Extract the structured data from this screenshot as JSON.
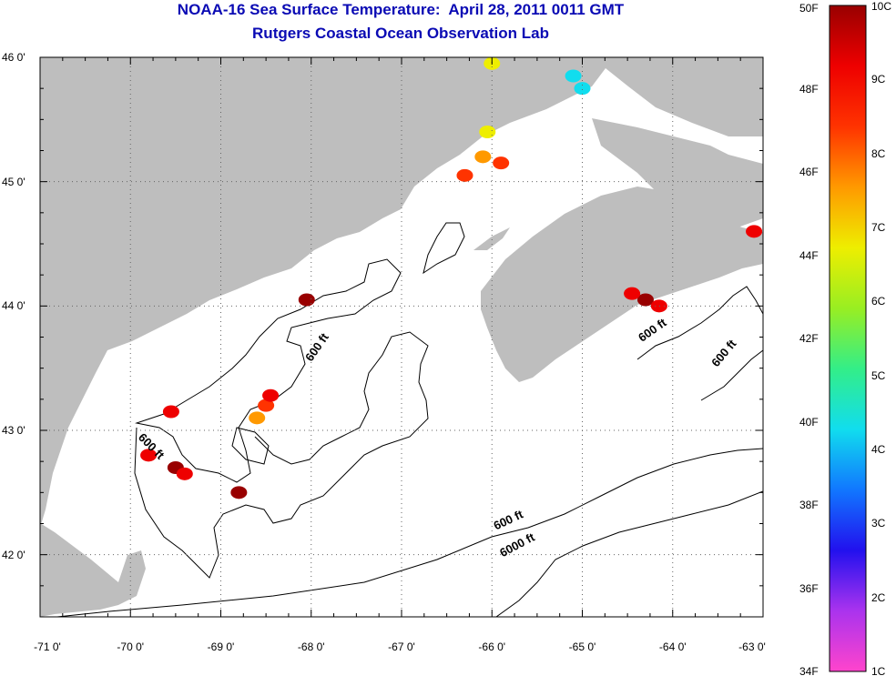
{
  "title": {
    "line1": "NOAA-16 Sea Surface Temperature:  April 28, 2011 0011 GMT",
    "line2": "Rutgers Coastal Ocean Observation Lab"
  },
  "colors": {
    "title": "#0a0ab4",
    "land": "#bebebe",
    "ocean": "#ffffff",
    "contour": "#000000"
  },
  "map": {
    "lon_range": [
      -71,
      -63
    ],
    "lat_range": [
      41.5,
      46
    ],
    "lat_ticks": [
      {
        "value": 46,
        "label": "46 0'"
      },
      {
        "value": 45,
        "label": "45 0'"
      },
      {
        "value": 44,
        "label": "44 0'"
      },
      {
        "value": 43,
        "label": "43 0'"
      },
      {
        "value": 42,
        "label": "42 0'"
      }
    ],
    "lon_ticks": [
      {
        "value": -71,
        "label": "-71 0'"
      },
      {
        "value": -70,
        "label": "-70 0'"
      },
      {
        "value": -69,
        "label": "-69 0'"
      },
      {
        "value": -68,
        "label": "-68 0'"
      },
      {
        "value": -67,
        "label": "-67 0'"
      },
      {
        "value": -66,
        "label": "-66 0'"
      },
      {
        "value": -65,
        "label": "-65 0'"
      },
      {
        "value": -64,
        "label": "-64 0'"
      },
      {
        "value": -63,
        "label": "-63 0'"
      }
    ],
    "contour_labels": [
      {
        "text": "600 ft",
        "lon": -67.9,
        "lat": 43.65,
        "angle": -55
      },
      {
        "text": "600 ft",
        "lon": -69.8,
        "lat": 42.85,
        "angle": 45
      },
      {
        "text": "600 ft",
        "lon": -64.2,
        "lat": 43.78,
        "angle": -35
      },
      {
        "text": "600 ft",
        "lon": -63.4,
        "lat": 43.6,
        "angle": -50
      },
      {
        "text": "600 ft",
        "lon": -65.8,
        "lat": 42.25,
        "angle": -25
      },
      {
        "text": "6000 ft",
        "lon": -65.7,
        "lat": 42.05,
        "angle": -28
      }
    ],
    "sst_patches": [
      {
        "lon": -68.5,
        "lat": 43.2,
        "level": 0.85
      },
      {
        "lon": -68.45,
        "lat": 43.28,
        "level": 0.95
      },
      {
        "lon": -68.6,
        "lat": 43.1,
        "level": 0.75
      },
      {
        "lon": -69.8,
        "lat": 42.8,
        "level": 0.95
      },
      {
        "lon": -69.5,
        "lat": 42.7,
        "level": 0.98
      },
      {
        "lon": -69.4,
        "lat": 42.65,
        "level": 0.92
      },
      {
        "lon": -68.05,
        "lat": 44.05,
        "level": 0.96
      },
      {
        "lon": -64.3,
        "lat": 44.05,
        "level": 0.98
      },
      {
        "lon": -64.15,
        "lat": 44.0,
        "level": 0.93
      },
      {
        "lon": -64.45,
        "lat": 44.1,
        "level": 0.9
      },
      {
        "lon": -63.1,
        "lat": 44.6,
        "level": 0.9
      },
      {
        "lon": -66.1,
        "lat": 45.2,
        "level": 0.75
      },
      {
        "lon": -66.3,
        "lat": 45.05,
        "level": 0.78
      },
      {
        "lon": -65.9,
        "lat": 45.15,
        "level": 0.8
      },
      {
        "lon": -66.05,
        "lat": 45.4,
        "level": 0.6
      },
      {
        "lon": -65.1,
        "lat": 45.85,
        "level": 0.4
      },
      {
        "lon": -65.0,
        "lat": 45.75,
        "level": 0.35
      },
      {
        "lon": -66.0,
        "lat": 45.95,
        "level": 0.6
      },
      {
        "lon": -69.55,
        "lat": 43.15,
        "level": 0.9
      },
      {
        "lon": -68.8,
        "lat": 42.5,
        "level": 0.97
      }
    ]
  },
  "colorbar": {
    "left_labels": [
      "50F",
      "48F",
      "46F",
      "44F",
      "42F",
      "40F",
      "38F",
      "36F",
      "34F"
    ],
    "right_labels": [
      "10C",
      "9C",
      "8C",
      "7C",
      "6C",
      "5C",
      "4C",
      "3C",
      "2C",
      "1C"
    ],
    "gradient": [
      "#ff44cc",
      "#aa33ee",
      "#2211ee",
      "#1177ff",
      "#11ddee",
      "#33ee88",
      "#99ee22",
      "#eeee00",
      "#ff9900",
      "#ff3300",
      "#ee0000",
      "#990000"
    ]
  }
}
